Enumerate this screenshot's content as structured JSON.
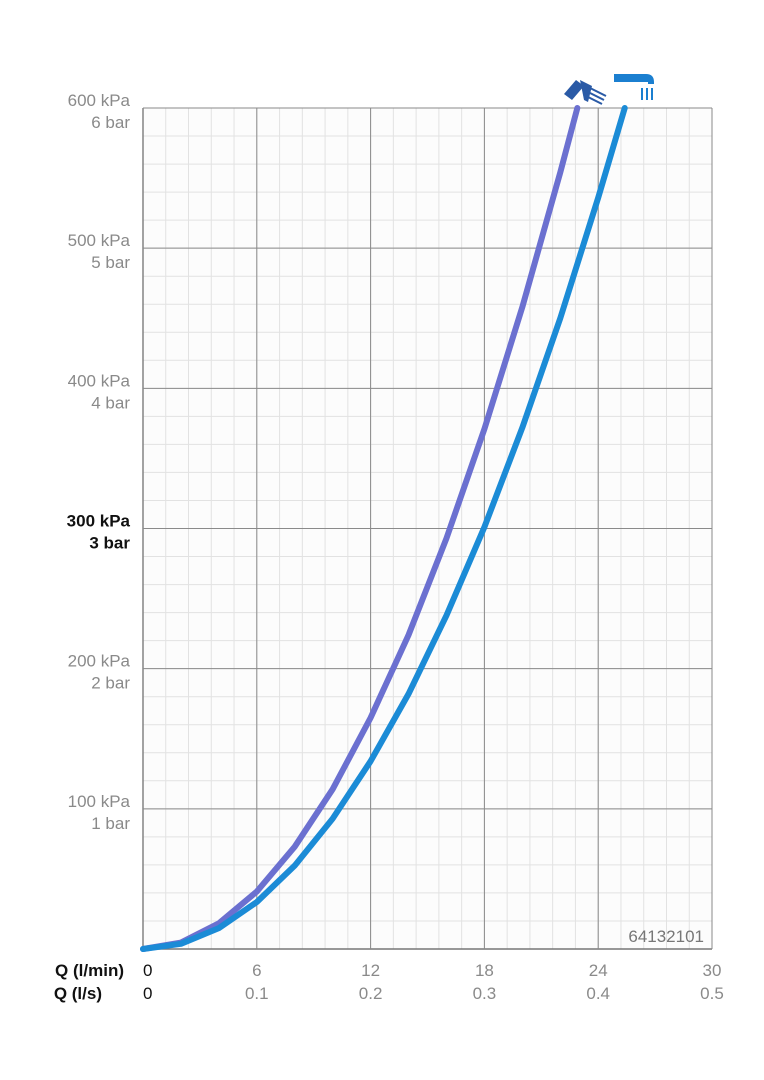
{
  "chart_data": {
    "type": "line",
    "xlabel": "Q (l/min)",
    "x2label": "Q (l/s)",
    "xlim": [
      0,
      30
    ],
    "xticks": [
      0,
      6,
      12,
      18,
      24,
      30
    ],
    "x2lim": [
      0,
      0.5
    ],
    "x2ticks": [
      0,
      0.1,
      0.2,
      0.3,
      0.4,
      0.5
    ],
    "ylim": [
      0,
      600
    ],
    "yticks": [
      {
        "value": 100,
        "label": "100 kPa"
      },
      {
        "value": 200,
        "label": "200 kPa"
      },
      {
        "value": 300,
        "label": "300 kPa"
      },
      {
        "value": 400,
        "label": "400 kPa"
      },
      {
        "value": 500,
        "label": "500 kPa"
      },
      {
        "value": 600,
        "label": "600 kPa"
      }
    ],
    "y2lim": [
      0,
      6
    ],
    "y2ticks": [
      {
        "value": 1,
        "label": "1 bar"
      },
      {
        "value": 2,
        "label": "2 bar"
      },
      {
        "value": 3,
        "label": "3 bar"
      },
      {
        "value": 4,
        "label": "4 bar"
      },
      {
        "value": 5,
        "label": "5 bar"
      },
      {
        "value": 6,
        "label": "6 bar"
      }
    ],
    "highlight_ytick": 300,
    "grid": true,
    "annotation": "64132101",
    "series": [
      {
        "color": "#6b70d0",
        "x": [
          0,
          2,
          4,
          6,
          8,
          10,
          12,
          14,
          16,
          18,
          20,
          22,
          22.9
        ],
        "values": [
          0,
          4.6,
          18.3,
          41,
          73,
          114,
          165,
          224,
          293,
          371,
          458,
          554,
          600
        ]
      },
      {
        "color": "#1b8bd6",
        "x": [
          0,
          2,
          4,
          6,
          8,
          10,
          12,
          14,
          16,
          18,
          20,
          22,
          24,
          25.4
        ],
        "values": [
          0,
          3.7,
          14.9,
          33.5,
          59.5,
          93,
          134,
          182,
          238,
          301,
          372,
          450,
          536,
          600
        ]
      }
    ]
  }
}
